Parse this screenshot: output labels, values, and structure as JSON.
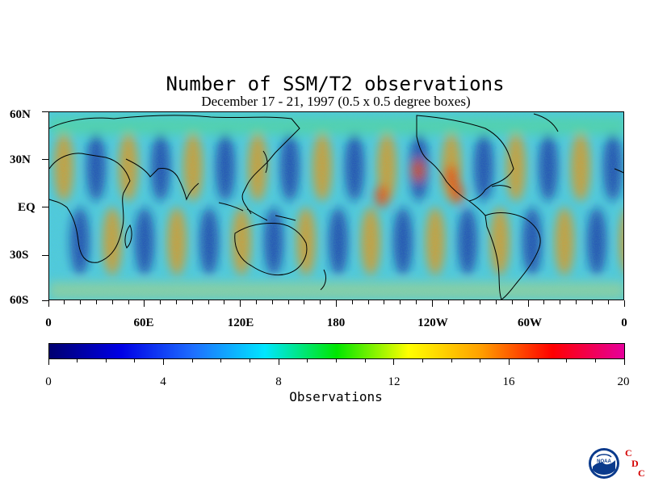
{
  "title": "Number of SSM/T2 observations",
  "subtitle": "December 17 - 21, 1997 (0.5 x 0.5 degree boxes)",
  "latitude_labels": [
    "60N",
    "30N",
    "EQ",
    "30S",
    "60S"
  ],
  "longitude_labels": [
    "0",
    "60E",
    "120E",
    "180",
    "120W",
    "60W",
    "0"
  ],
  "colorbar": {
    "ticks": [
      "0",
      "4",
      "8",
      "12",
      "16",
      "20"
    ],
    "label": "Observations",
    "colors": [
      "#000070",
      "#0000e6",
      "#1e6eff",
      "#00e6ff",
      "#00e600",
      "#ffff00",
      "#ffa000",
      "#ff0000",
      "#e6009b"
    ]
  },
  "logo": {
    "agency": "NOAA",
    "letters": [
      "C",
      "D",
      "C"
    ]
  }
}
